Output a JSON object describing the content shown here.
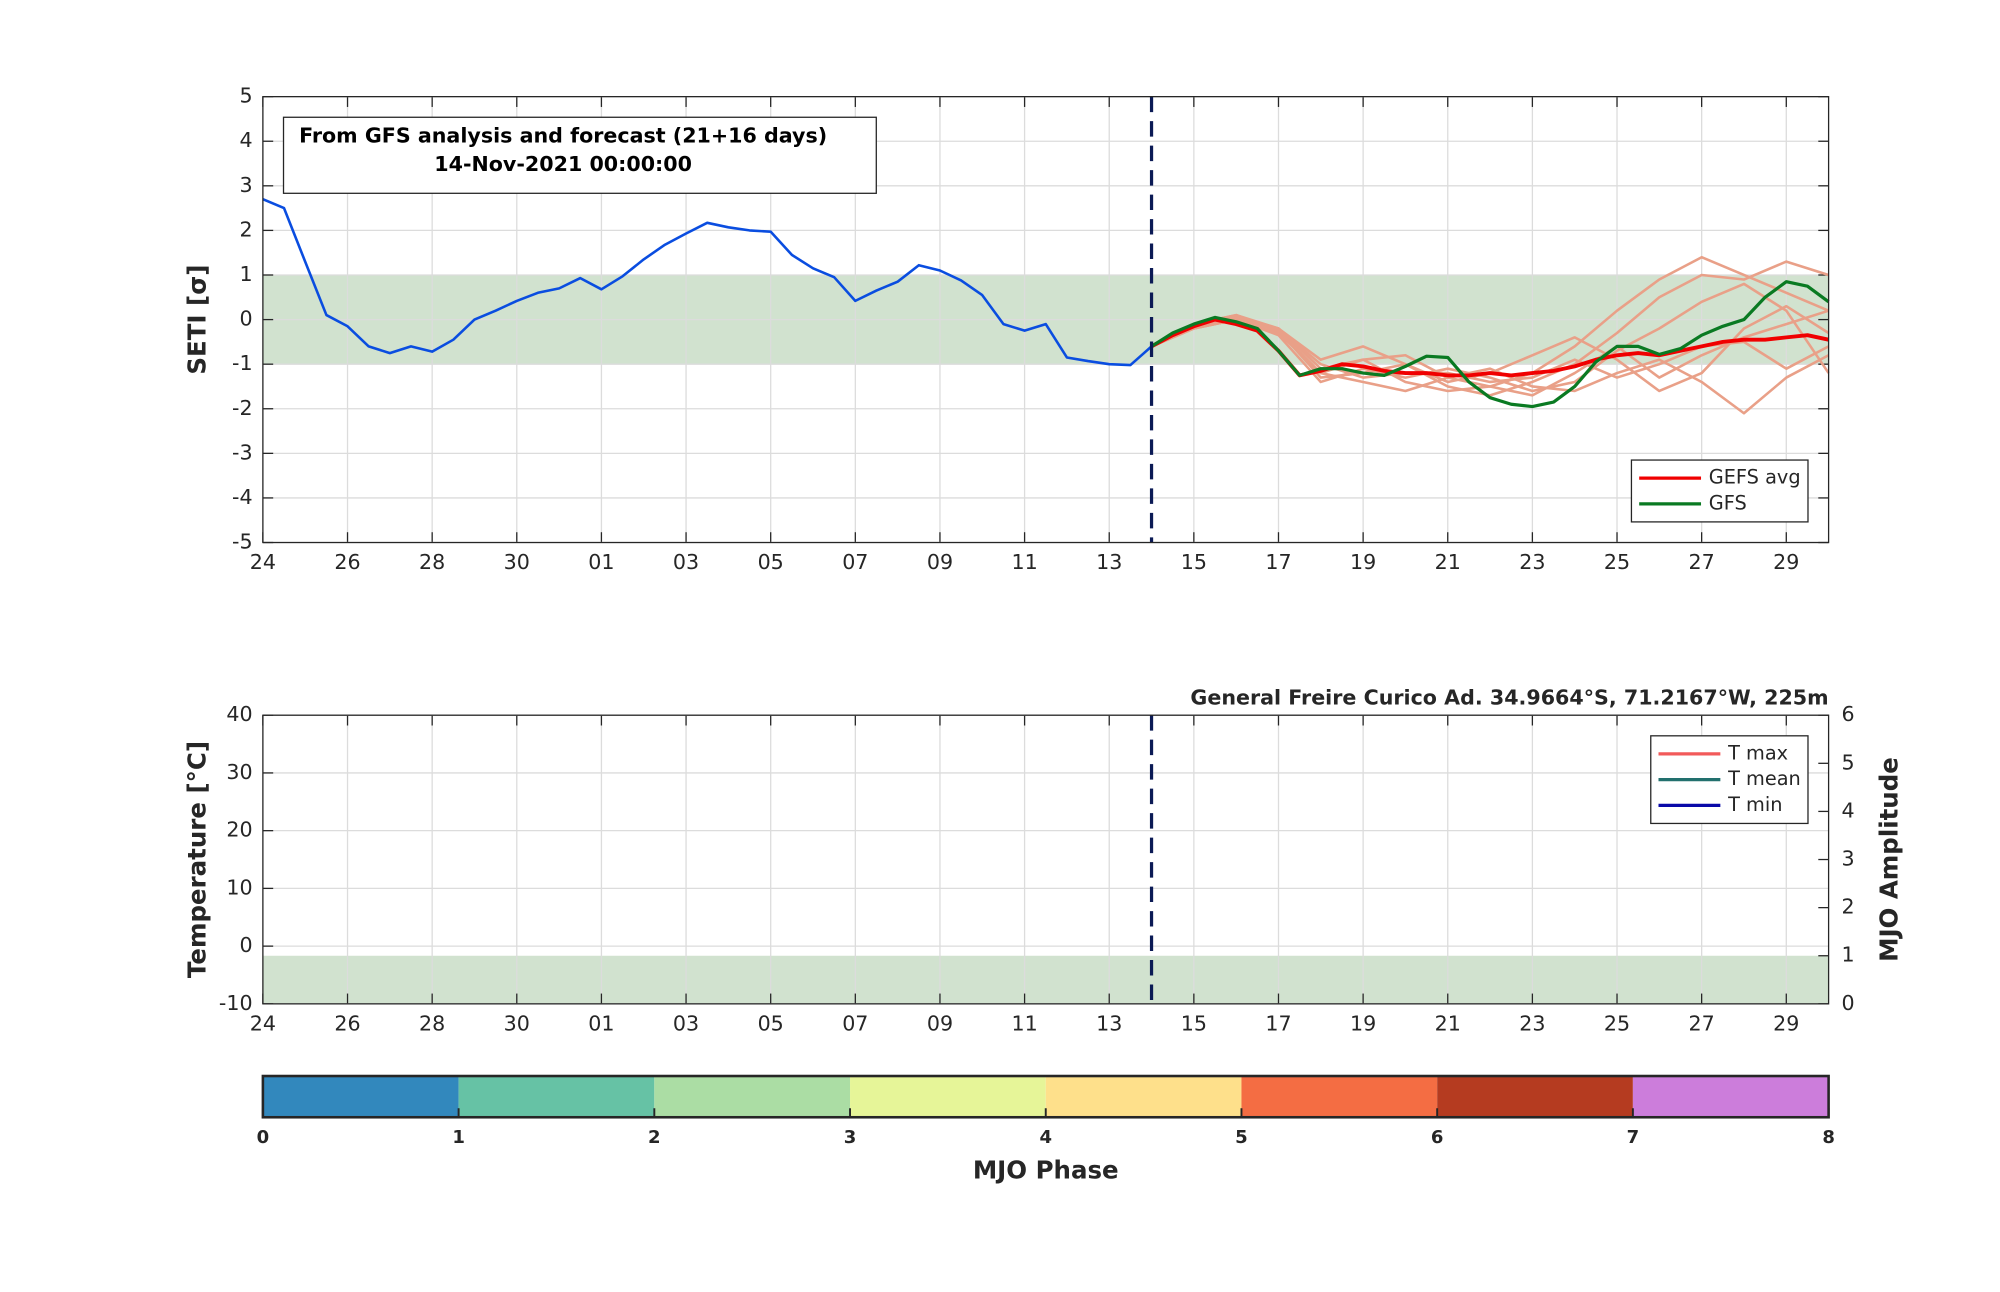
{
  "chart_data": [
    {
      "type": "line",
      "ylabel": "SETI [σ]",
      "annotation": [
        "From GFS analysis and forecast (21+16 days)",
        "14-Nov-2021 00:00:00"
      ],
      "xlim": [
        0,
        37
      ],
      "xticks": [
        {
          "value": 0,
          "label": "24"
        },
        {
          "value": 2,
          "label": "26"
        },
        {
          "value": 4,
          "label": "28"
        },
        {
          "value": 6,
          "label": "30"
        },
        {
          "value": 8,
          "label": "01"
        },
        {
          "value": 10,
          "label": "03"
        },
        {
          "value": 12,
          "label": "05"
        },
        {
          "value": 14,
          "label": "07"
        },
        {
          "value": 16,
          "label": "09"
        },
        {
          "value": 18,
          "label": "11"
        },
        {
          "value": 20,
          "label": "13"
        },
        {
          "value": 22,
          "label": "15"
        },
        {
          "value": 24,
          "label": "17"
        },
        {
          "value": 26,
          "label": "19"
        },
        {
          "value": 28,
          "label": "21"
        },
        {
          "value": 30,
          "label": "23"
        },
        {
          "value": 32,
          "label": "25"
        },
        {
          "value": 34,
          "label": "27"
        },
        {
          "value": 36,
          "label": "29"
        }
      ],
      "ylim": [
        -5,
        5
      ],
      "yticks": [
        -5,
        -4,
        -3,
        -2,
        -1,
        0,
        1,
        2,
        3,
        4,
        5
      ],
      "grid": true,
      "shade": {
        "range": [
          -1,
          1
        ],
        "color": "#d1e2cf"
      },
      "vline": 21,
      "legend": "lower right",
      "series": [
        {
          "color": "#e9a088",
          "x": [
            21,
            22,
            23,
            24,
            25,
            26,
            27,
            28,
            29,
            30,
            31,
            32,
            33,
            34,
            35,
            36,
            37
          ],
          "values": [
            -0.6,
            -0.15,
            0.05,
            -0.2,
            -1.1,
            -0.9,
            -0.8,
            -1.3,
            -1.5,
            -1.2,
            -0.6,
            0.2,
            0.9,
            1.4,
            1.0,
            0.6,
            0.2
          ]
        },
        {
          "color": "#e9a088",
          "x": [
            21,
            22,
            23,
            24,
            25,
            26,
            27,
            28,
            29,
            30,
            31,
            32,
            33,
            34,
            35,
            36,
            37
          ],
          "values": [
            -0.6,
            -0.1,
            0.1,
            -0.25,
            -1.3,
            -1.2,
            -1.0,
            -1.5,
            -1.7,
            -1.4,
            -1.0,
            -0.3,
            0.5,
            1.0,
            0.9,
            1.3,
            1.0
          ]
        },
        {
          "color": "#e9a088",
          "x": [
            21,
            22,
            23,
            24,
            25,
            26,
            27,
            28,
            29,
            30,
            31,
            32,
            33,
            34,
            35,
            36,
            37
          ],
          "values": [
            -0.6,
            -0.2,
            0.0,
            -0.3,
            -1.2,
            -1.4,
            -1.6,
            -1.3,
            -1.1,
            -1.5,
            -1.6,
            -1.2,
            -0.9,
            -1.4,
            -2.1,
            -1.3,
            -0.8
          ]
        },
        {
          "color": "#e9a088",
          "x": [
            21,
            22,
            23,
            24,
            25,
            26,
            27,
            28,
            29,
            30,
            31,
            32,
            33,
            34,
            35,
            36,
            37
          ],
          "values": [
            -0.6,
            -0.15,
            0.05,
            -0.2,
            -0.9,
            -0.6,
            -1.0,
            -1.4,
            -1.2,
            -0.8,
            -0.4,
            -0.9,
            -1.6,
            -1.2,
            -0.2,
            0.3,
            -0.3
          ]
        },
        {
          "color": "#e9a088",
          "x": [
            21,
            22,
            23,
            24,
            25,
            26,
            27,
            28,
            29,
            30,
            31,
            32,
            33,
            34,
            35,
            36,
            37
          ],
          "values": [
            -0.6,
            -0.2,
            0.0,
            -0.35,
            -1.4,
            -1.1,
            -1.3,
            -1.1,
            -1.3,
            -1.6,
            -1.4,
            -0.7,
            -0.2,
            0.4,
            0.8,
            0.2,
            -1.2
          ]
        },
        {
          "color": "#e9a088",
          "x": [
            21,
            22,
            23,
            24,
            25,
            26,
            27,
            28,
            29,
            30,
            31,
            32,
            33,
            34,
            35,
            36,
            37
          ],
          "values": [
            -0.6,
            -0.1,
            0.1,
            -0.2,
            -1.0,
            -1.3,
            -1.2,
            -1.2,
            -1.4,
            -1.3,
            -0.9,
            -1.3,
            -1.0,
            -0.6,
            -0.5,
            -1.1,
            -0.6
          ]
        },
        {
          "color": "#e9a088",
          "x": [
            21,
            22,
            23,
            24,
            25,
            26,
            27,
            28,
            29,
            30,
            31,
            32,
            33,
            34,
            35,
            36,
            37
          ],
          "values": [
            -0.6,
            -0.2,
            0.0,
            -0.25,
            -1.2,
            -0.9,
            -1.4,
            -1.6,
            -1.5,
            -1.7,
            -1.2,
            -0.6,
            -1.3,
            -0.8,
            -0.4,
            -0.1,
            0.2
          ]
        },
        {
          "color": "#0a4de0",
          "x": [
            0,
            0.5,
            1,
            1.5,
            2,
            2.5,
            3,
            3.5,
            4,
            4.5,
            5,
            5.5,
            6,
            6.5,
            7,
            7.5,
            8,
            8.5,
            9,
            9.5,
            10,
            10.5,
            11,
            11.5,
            12,
            12.5,
            13,
            13.5,
            14,
            14.5,
            15,
            15.5,
            16,
            16.5,
            17,
            17.5,
            18,
            18.5,
            19,
            19.5,
            20,
            20.5,
            21
          ],
          "values": [
            2.7,
            2.5,
            1.3,
            0.1,
            -0.15,
            -0.6,
            -0.75,
            -0.6,
            -0.72,
            -0.45,
            0,
            0.2,
            0.42,
            0.6,
            0.7,
            0.93,
            0.68,
            0.97,
            1.35,
            1.68,
            1.93,
            2.17,
            2.07,
            2.0,
            1.97,
            1.45,
            1.15,
            0.95,
            0.42,
            0.65,
            0.85,
            1.22,
            1.1,
            0.88,
            0.55,
            -0.1,
            -0.25,
            -0.1,
            -0.85,
            -0.93,
            -1.0,
            -1.02,
            -0.6
          ]
        },
        {
          "name": "GEFS avg",
          "color": "#f00000",
          "width": 3,
          "x": [
            21,
            21.5,
            22,
            22.5,
            23,
            23.5,
            24,
            24.5,
            25,
            25.5,
            26,
            26.5,
            27,
            27.5,
            28,
            28.5,
            29,
            29.5,
            30,
            30.5,
            31,
            31.5,
            32,
            32.5,
            33,
            33.5,
            34,
            34.5,
            35,
            35.5,
            36,
            36.5,
            37
          ],
          "values": [
            -0.6,
            -0.35,
            -0.15,
            0.0,
            -0.1,
            -0.25,
            -0.7,
            -1.25,
            -1.15,
            -1.0,
            -1.05,
            -1.15,
            -1.2,
            -1.2,
            -1.25,
            -1.25,
            -1.2,
            -1.25,
            -1.2,
            -1.15,
            -1.05,
            -0.9,
            -0.8,
            -0.75,
            -0.8,
            -0.7,
            -0.6,
            -0.5,
            -0.45,
            -0.45,
            -0.4,
            -0.35,
            -0.45
          ]
        },
        {
          "name": "GFS",
          "color": "#0a7a22",
          "width": 2.5,
          "x": [
            21,
            21.5,
            22,
            22.5,
            23,
            23.5,
            24,
            24.5,
            25,
            25.5,
            26,
            26.5,
            27,
            27.5,
            28,
            28.5,
            29,
            29.5,
            30,
            30.5,
            31,
            31.5,
            32,
            32.5,
            33,
            33.5,
            34,
            34.5,
            35,
            35.5,
            36,
            36.5,
            37
          ],
          "values": [
            -0.6,
            -0.3,
            -0.1,
            0.05,
            -0.05,
            -0.2,
            -0.7,
            -1.25,
            -1.1,
            -1.1,
            -1.2,
            -1.25,
            -1.05,
            -0.82,
            -0.85,
            -1.4,
            -1.75,
            -1.9,
            -1.95,
            -1.85,
            -1.5,
            -0.95,
            -0.6,
            -0.6,
            -0.78,
            -0.65,
            -0.35,
            -0.15,
            0.0,
            0.5,
            0.85,
            0.75,
            0.4
          ]
        }
      ]
    },
    {
      "type": "line",
      "title": "General Freire Curico Ad. 34.9664°S, 71.2167°W, 225m",
      "ylabel": "Temperature [°C]",
      "y2label": "MJO Amplitude",
      "xlim": [
        0,
        37
      ],
      "xticks": [
        {
          "value": 0,
          "label": "24"
        },
        {
          "value": 2,
          "label": "26"
        },
        {
          "value": 4,
          "label": "28"
        },
        {
          "value": 6,
          "label": "30"
        },
        {
          "value": 8,
          "label": "01"
        },
        {
          "value": 10,
          "label": "03"
        },
        {
          "value": 12,
          "label": "05"
        },
        {
          "value": 14,
          "label": "07"
        },
        {
          "value": 16,
          "label": "09"
        },
        {
          "value": 18,
          "label": "11"
        },
        {
          "value": 20,
          "label": "13"
        },
        {
          "value": 22,
          "label": "15"
        },
        {
          "value": 24,
          "label": "17"
        },
        {
          "value": 26,
          "label": "19"
        },
        {
          "value": 28,
          "label": "21"
        },
        {
          "value": 30,
          "label": "23"
        },
        {
          "value": 32,
          "label": "25"
        },
        {
          "value": 34,
          "label": "27"
        },
        {
          "value": 36,
          "label": "29"
        }
      ],
      "ylim": [
        -10,
        40
      ],
      "yticks": [
        -10,
        0,
        10,
        20,
        30,
        40
      ],
      "y2lim": [
        0,
        6
      ],
      "y2ticks": [
        0,
        1,
        2,
        3,
        4,
        5,
        6
      ],
      "grid": true,
      "shade": {
        "range": [
          0,
          1
        ],
        "axis": "y2",
        "color": "#d1e2cf"
      },
      "vline": 21,
      "legend": "upper right",
      "series": [
        {
          "name": "T max",
          "color": "#f25a5a",
          "x": [],
          "values": []
        },
        {
          "name": "T mean",
          "color": "#22706e",
          "x": [],
          "values": []
        },
        {
          "name": "T min",
          "color": "#0a0aa8",
          "x": [],
          "values": []
        }
      ]
    },
    {
      "type": "colorbar",
      "xlabel": "MJO Phase",
      "xlim": [
        0,
        8
      ],
      "xticks": [
        0,
        1,
        2,
        3,
        4,
        5,
        6,
        7,
        8
      ],
      "colors": [
        "#3288bd",
        "#66c2a5",
        "#abdda4",
        "#e6f598",
        "#fee08b",
        "#f46d43",
        "#b53b20",
        "#cc7ddb"
      ]
    }
  ]
}
